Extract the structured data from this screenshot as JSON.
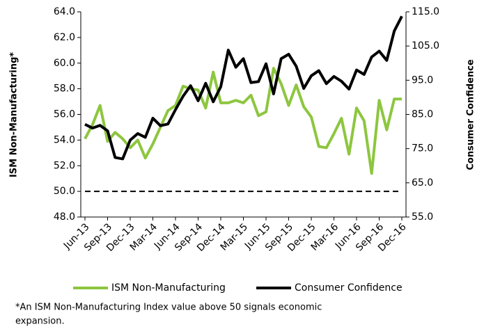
{
  "chart_data": {
    "type": "line",
    "y_label": "ISM Non-Manufacturing*",
    "y2_label": "Consumer Confidence",
    "footnote": [
      "*An ISM Non-Manufacturing Index value above 50 signals economic",
      "expansion."
    ],
    "categories": [
      "Jun-13",
      null,
      null,
      "Sep-13",
      null,
      null,
      "Dec-13",
      null,
      null,
      "Mar-14",
      null,
      null,
      "Jun-14",
      null,
      null,
      "Sep-14",
      null,
      null,
      "Dec-14",
      null,
      null,
      "Mar-15",
      null,
      null,
      "Jun-15",
      null,
      null,
      "Sep-15",
      null,
      null,
      "Dec-15",
      null,
      null,
      "Mar-16",
      null,
      null,
      "Jun-16",
      null,
      null,
      "Sep-16",
      null,
      null,
      "Dec-16"
    ],
    "series": [
      {
        "name": "ISM Non-Manufacturing",
        "color": "#8dc63f",
        "axis": "y",
        "values": [
          54.1,
          55.2,
          56.7,
          53.9,
          54.6,
          54.1,
          53.4,
          54.0,
          52.6,
          53.7,
          55.0,
          56.3,
          56.7,
          58.2,
          58.0,
          57.9,
          56.5,
          59.3,
          56.9,
          56.9,
          57.1,
          56.9,
          57.5,
          55.9,
          56.2,
          59.6,
          58.4,
          56.7,
          58.3,
          56.6,
          55.8,
          53.5,
          53.4,
          54.5,
          55.7,
          52.9,
          56.5,
          55.5,
          51.4,
          57.1,
          54.8,
          57.2,
          57.2
        ]
      },
      {
        "name": "Consumer Confidence",
        "color": "#000000",
        "axis": "y2",
        "values": [
          82.1,
          81.0,
          81.8,
          80.2,
          72.4,
          72.0,
          77.5,
          79.4,
          78.3,
          83.9,
          81.7,
          82.2,
          86.4,
          90.3,
          93.4,
          89.0,
          94.1,
          88.7,
          93.1,
          103.8,
          98.8,
          101.3,
          94.3,
          94.6,
          99.8,
          91.0,
          101.3,
          102.6,
          99.1,
          92.6,
          96.3,
          97.8,
          94.0,
          96.1,
          94.7,
          92.4,
          98.0,
          96.7,
          101.8,
          103.5,
          100.8,
          109.4,
          113.7
        ]
      }
    ],
    "reference_line": {
      "value": 50,
      "axis": "y",
      "style": "dashed"
    },
    "ylim": [
      48,
      64
    ],
    "yticks": [
      {
        "value": 48,
        "label": "48.0"
      },
      {
        "value": 50,
        "label": "50.0"
      },
      {
        "value": 52,
        "label": "52.0"
      },
      {
        "value": 54,
        "label": "54.0"
      },
      {
        "value": 56,
        "label": "56.0"
      },
      {
        "value": 58,
        "label": "58.0"
      },
      {
        "value": 60,
        "label": "60.0"
      },
      {
        "value": 62,
        "label": "62.0"
      },
      {
        "value": 64,
        "label": "64.0"
      }
    ],
    "y2lim": [
      55,
      115
    ],
    "y2ticks": [
      {
        "value": 55,
        "label": "55.0"
      },
      {
        "value": 65,
        "label": "65.0"
      },
      {
        "value": 75,
        "label": "75.0"
      },
      {
        "value": 85,
        "label": "85.0"
      },
      {
        "value": 95,
        "label": "95.0"
      },
      {
        "value": 105,
        "label": "105.0"
      },
      {
        "value": 115,
        "label": "115.0"
      }
    ],
    "legend": "bottom"
  }
}
